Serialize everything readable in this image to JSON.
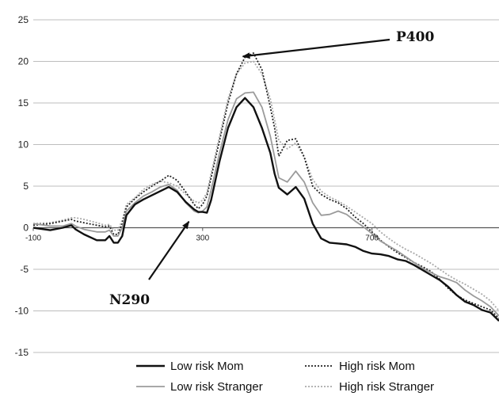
{
  "chart_data": {
    "type": "line",
    "title": "",
    "xlabel": "",
    "ylabel": "",
    "xlim": [
      -100,
      1000
    ],
    "ylim": [
      -15,
      25
    ],
    "yticks": [
      "25",
      "20",
      "15",
      "10",
      "5",
      "0",
      "-5",
      "-10",
      "-15"
    ],
    "xticks": [
      "-100",
      "300",
      "700"
    ],
    "grid": "horizontal",
    "legend_position": "bottom",
    "annotations": [
      {
        "text": "P400",
        "target_x": 380,
        "target_y": 20.5
      },
      {
        "text": "N290",
        "target_x": 290,
        "target_y": 1.5
      }
    ],
    "series": [
      {
        "name": "Low risk Mom",
        "color": "#111111",
        "style": "solid-thick",
        "x": [
          -100,
          -60,
          -30,
          -10,
          0,
          20,
          50,
          70,
          80,
          90,
          100,
          110,
          120,
          140,
          160,
          180,
          200,
          220,
          240,
          260,
          280,
          290,
          300,
          310,
          320,
          340,
          360,
          380,
          400,
          420,
          440,
          460,
          470,
          480,
          500,
          520,
          540,
          560,
          580,
          600,
          620,
          640,
          660,
          680,
          700,
          720,
          740,
          760,
          780,
          800,
          820,
          840,
          860,
          880,
          900,
          920,
          940,
          960,
          980,
          1000
        ],
        "y": [
          0,
          -0.3,
          0,
          0.3,
          -0.2,
          -0.8,
          -1.5,
          -1.5,
          -1.0,
          -1.8,
          -1.8,
          -1.0,
          1.5,
          2.8,
          3.4,
          3.9,
          4.4,
          4.9,
          4.3,
          3.1,
          2.2,
          1.9,
          1.9,
          1.8,
          3.3,
          8.0,
          12.0,
          14.5,
          15.6,
          14.5,
          12.0,
          9.0,
          6.5,
          4.8,
          4.0,
          4.9,
          3.5,
          0.5,
          -1.3,
          -1.8,
          -1.9,
          -2.0,
          -2.3,
          -2.8,
          -3.1,
          -3.2,
          -3.4,
          -3.8,
          -4.0,
          -4.5,
          -5.1,
          -5.7,
          -6.3,
          -7.1,
          -8.1,
          -8.9,
          -9.3,
          -9.9,
          -10.2,
          -11.2
        ]
      },
      {
        "name": "Low risk Stranger",
        "color": "#9b9b9b",
        "style": "solid",
        "x": [
          -100,
          -60,
          -30,
          -10,
          0,
          20,
          50,
          70,
          80,
          90,
          100,
          110,
          120,
          140,
          160,
          180,
          200,
          220,
          240,
          260,
          280,
          290,
          300,
          310,
          320,
          340,
          360,
          380,
          400,
          420,
          440,
          460,
          470,
          480,
          500,
          520,
          540,
          560,
          580,
          600,
          620,
          640,
          660,
          680,
          700,
          720,
          740,
          760,
          780,
          800,
          820,
          840,
          860,
          880,
          900,
          920,
          940,
          960,
          980,
          1000
        ],
        "y": [
          0.5,
          0.2,
          0.2,
          0.5,
          0.2,
          -0.2,
          -0.5,
          -0.5,
          -0.3,
          -1.0,
          -1.0,
          0,
          2.0,
          3.0,
          3.8,
          4.3,
          4.9,
          5.2,
          4.5,
          3.0,
          2.0,
          1.8,
          2.0,
          2.5,
          4.5,
          9.0,
          13.0,
          15.5,
          16.2,
          16.3,
          14.5,
          11.0,
          8.5,
          6.0,
          5.5,
          6.8,
          5.5,
          3.0,
          1.5,
          1.6,
          2.0,
          1.6,
          0.8,
          0.1,
          -0.7,
          -1.6,
          -2.2,
          -2.8,
          -3.5,
          -4.2,
          -4.9,
          -5.4,
          -5.9,
          -6.2,
          -6.6,
          -7.5,
          -8.2,
          -8.8,
          -9.5,
          -10.6
        ]
      },
      {
        "name": "High risk Mom",
        "color": "#222222",
        "style": "dotted",
        "x": [
          -100,
          -60,
          -30,
          -10,
          0,
          20,
          50,
          70,
          80,
          90,
          100,
          110,
          120,
          140,
          160,
          180,
          200,
          220,
          240,
          260,
          280,
          290,
          300,
          310,
          320,
          340,
          360,
          380,
          400,
          420,
          440,
          460,
          470,
          480,
          500,
          520,
          540,
          560,
          580,
          600,
          620,
          640,
          660,
          680,
          700,
          720,
          740,
          760,
          780,
          800,
          820,
          840,
          860,
          880,
          900,
          920,
          940,
          960,
          980,
          1000
        ],
        "y": [
          0.3,
          0.5,
          0.8,
          1.0,
          0.8,
          0.6,
          0.3,
          0.1,
          0.2,
          -0.8,
          -0.8,
          0.5,
          2.5,
          3.5,
          4.3,
          5.0,
          5.6,
          6.3,
          5.7,
          4.3,
          2.8,
          2.3,
          2.8,
          3.8,
          6.0,
          10.5,
          15.0,
          18.5,
          20.5,
          21.0,
          19.0,
          14.5,
          12.0,
          8.6,
          10.5,
          10.7,
          8.5,
          5.0,
          4.0,
          3.4,
          3.0,
          2.3,
          1.3,
          0.5,
          -0.5,
          -1.5,
          -2.3,
          -3.0,
          -3.6,
          -4.2,
          -4.7,
          -5.3,
          -6.2,
          -7.3,
          -8.1,
          -8.7,
          -9.1,
          -9.5,
          -9.9,
          -10.9
        ]
      },
      {
        "name": "High risk Stranger",
        "color": "#aaaaaa",
        "style": "dotted",
        "x": [
          -100,
          -60,
          -30,
          -10,
          0,
          20,
          50,
          70,
          80,
          90,
          100,
          110,
          120,
          140,
          160,
          180,
          200,
          220,
          240,
          260,
          280,
          290,
          300,
          310,
          320,
          340,
          360,
          380,
          400,
          420,
          440,
          460,
          470,
          480,
          500,
          520,
          540,
          560,
          580,
          600,
          620,
          640,
          660,
          680,
          700,
          720,
          740,
          760,
          780,
          800,
          820,
          840,
          860,
          880,
          900,
          920,
          940,
          960,
          980,
          1000
        ],
        "y": [
          0.5,
          0.6,
          0.9,
          1.2,
          1.2,
          1.0,
          0.6,
          0.3,
          0.4,
          -0.3,
          -0.3,
          0.9,
          2.8,
          3.6,
          4.6,
          5.2,
          5.6,
          5.4,
          5.0,
          4.0,
          3.2,
          3.0,
          3.3,
          4.2,
          6.5,
          11.0,
          15.5,
          18.5,
          19.8,
          20.0,
          18.5,
          15.5,
          13.0,
          10.5,
          9.5,
          10.2,
          8.5,
          5.8,
          4.4,
          3.7,
          3.2,
          2.6,
          1.9,
          1.2,
          0.5,
          -0.5,
          -1.3,
          -2.0,
          -2.6,
          -3.1,
          -3.7,
          -4.3,
          -5.0,
          -5.7,
          -6.3,
          -6.8,
          -7.4,
          -8.0,
          -8.8,
          -10.0
        ]
      }
    ]
  }
}
